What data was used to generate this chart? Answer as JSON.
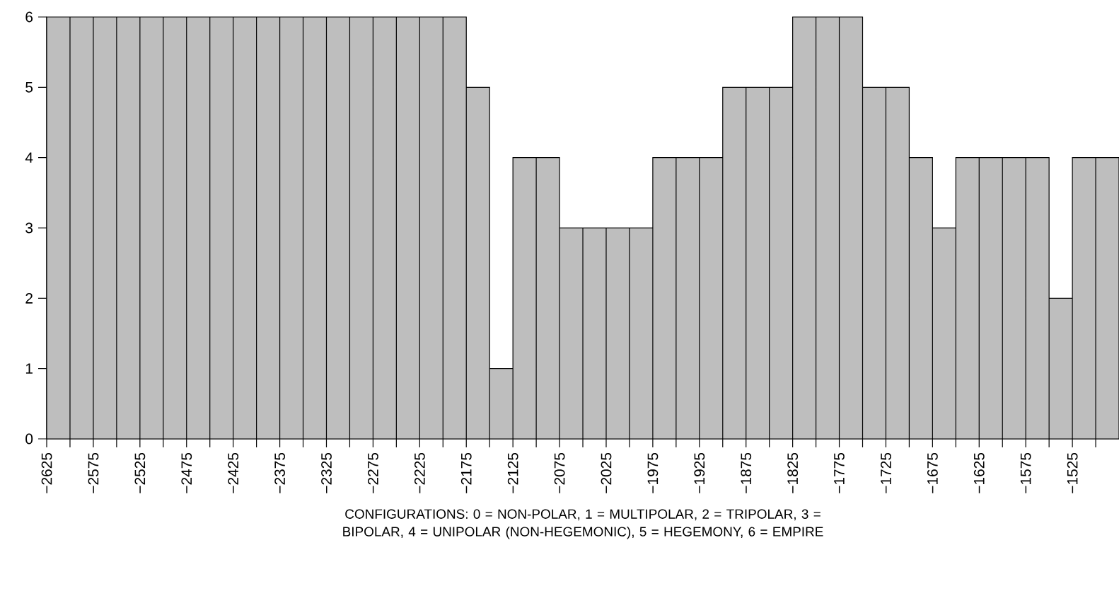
{
  "chart_data": {
    "type": "histogram",
    "xlabel": "CONFIGURATIONS: 0 = NON-POLAR, 1 = MULTIPOLAR, 2 = TRIPOLAR, 3 = BIPOLAR, 4 = UNIPOLAR (NON-HEGEMONIC), 5 = HEGEMONY, 6 = EMPIRE",
    "bins": [
      -2625,
      -2600,
      -2575,
      -2550,
      -2525,
      -2500,
      -2475,
      -2450,
      -2425,
      -2400,
      -2375,
      -2350,
      -2325,
      -2300,
      -2275,
      -2250,
      -2225,
      -2200,
      -2175,
      -2150,
      -2125,
      -2100,
      -2075,
      -2050,
      -2025,
      -2000,
      -1975,
      -1950,
      -1925,
      -1900,
      -1875,
      -1850,
      -1825,
      -1800,
      -1775,
      -1750,
      -1725,
      -1700,
      -1675,
      -1650,
      -1625,
      -1600,
      -1575,
      -1550,
      -1525,
      -1500,
      -1475
    ],
    "values": [
      6,
      6,
      6,
      6,
      6,
      6,
      6,
      6,
      6,
      6,
      6,
      6,
      6,
      6,
      6,
      6,
      6,
      6,
      5,
      1,
      4,
      4,
      3,
      3,
      3,
      3,
      4,
      4,
      4,
      5,
      5,
      5,
      6,
      6,
      6,
      5,
      5,
      4,
      3,
      4,
      4,
      4,
      4,
      2,
      4,
      4
    ],
    "color": "#bebebe",
    "xlim": [
      -2625,
      -1475
    ],
    "ylim": [
      0,
      6
    ],
    "yticks": [
      0,
      1,
      2,
      3,
      4,
      5,
      6
    ],
    "xticks": [
      {
        "value": -2625,
        "label": "−2625"
      },
      {
        "value": -2600,
        "label": null
      },
      {
        "value": -2575,
        "label": "−2575"
      },
      {
        "value": -2550,
        "label": null
      },
      {
        "value": -2525,
        "label": "−2525"
      },
      {
        "value": -2500,
        "label": null
      },
      {
        "value": -2475,
        "label": "−2475"
      },
      {
        "value": -2450,
        "label": null
      },
      {
        "value": -2425,
        "label": "−2425"
      },
      {
        "value": -2400,
        "label": null
      },
      {
        "value": -2375,
        "label": "−2375"
      },
      {
        "value": -2350,
        "label": null
      },
      {
        "value": -2325,
        "label": "−2325"
      },
      {
        "value": -2300,
        "label": null
      },
      {
        "value": -2275,
        "label": "−2275"
      },
      {
        "value": -2250,
        "label": null
      },
      {
        "value": -2225,
        "label": "−2225"
      },
      {
        "value": -2200,
        "label": null
      },
      {
        "value": -2175,
        "label": "−2175"
      },
      {
        "value": -2150,
        "label": null
      },
      {
        "value": -2125,
        "label": "−2125"
      },
      {
        "value": -2100,
        "label": null
      },
      {
        "value": -2075,
        "label": "−2075"
      },
      {
        "value": -2050,
        "label": null
      },
      {
        "value": -2025,
        "label": "−2025"
      },
      {
        "value": -2000,
        "label": null
      },
      {
        "value": -1975,
        "label": "−1975"
      },
      {
        "value": -1950,
        "label": null
      },
      {
        "value": -1925,
        "label": "−1925"
      },
      {
        "value": -1900,
        "label": null
      },
      {
        "value": -1875,
        "label": "−1875"
      },
      {
        "value": -1850,
        "label": null
      },
      {
        "value": -1825,
        "label": "−1825"
      },
      {
        "value": -1800,
        "label": null
      },
      {
        "value": -1775,
        "label": "−1775"
      },
      {
        "value": -1750,
        "label": null
      },
      {
        "value": -1725,
        "label": "−1725"
      },
      {
        "value": -1700,
        "label": null
      },
      {
        "value": -1675,
        "label": "−1675"
      },
      {
        "value": -1650,
        "label": null
      },
      {
        "value": -1625,
        "label": "−1625"
      },
      {
        "value": -1600,
        "label": null
      },
      {
        "value": -1575,
        "label": "−1575"
      },
      {
        "value": -1550,
        "label": null
      },
      {
        "value": -1525,
        "label": "−1525"
      },
      {
        "value": -1500,
        "label": null
      }
    ],
    "grid": false
  }
}
